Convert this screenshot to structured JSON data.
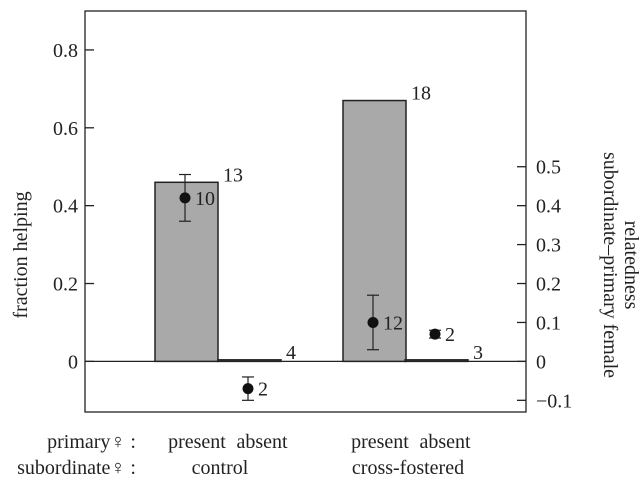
{
  "chart_data": {
    "type": "bar",
    "left_axis": {
      "label": "fraction helping",
      "ylim": [
        -0.13,
        0.9
      ],
      "ticks": [
        0,
        0.2,
        0.4,
        0.6,
        0.8
      ],
      "tick_labels": [
        "0",
        "0.2",
        "0.4",
        "0.6",
        "0.8"
      ]
    },
    "right_axis": {
      "label_line1": "subordinate–primary female",
      "label_line2": "relatedness",
      "ylim": [
        -0.13,
        0.9
      ],
      "ticks": [
        -0.1,
        0,
        0.1,
        0.2,
        0.3,
        0.4,
        0.5
      ],
      "tick_labels": [
        "−0.1",
        "0",
        "0.1",
        "0.2",
        "0.3",
        "0.4",
        "0.5"
      ]
    },
    "bars": [
      {
        "group": "control",
        "primary": "present",
        "value": 0.46,
        "n": "13"
      },
      {
        "group": "control",
        "primary": "absent",
        "value": 0.004,
        "n": "4"
      },
      {
        "group": "cross-fostered",
        "primary": "present",
        "value": 0.67,
        "n": "18"
      },
      {
        "group": "cross-fostered",
        "primary": "absent",
        "value": 0.004,
        "n": "3"
      }
    ],
    "points": [
      {
        "bar_index": 0,
        "value": 0.42,
        "err_low": 0.36,
        "err_high": 0.48,
        "n": "10"
      },
      {
        "bar_index": 1,
        "value": -0.07,
        "err_low": -0.1,
        "err_high": -0.04,
        "n": "2"
      },
      {
        "bar_index": 2,
        "value": 0.1,
        "err_low": 0.03,
        "err_high": 0.17,
        "n": "12"
      },
      {
        "bar_index": 3,
        "value": 0.07,
        "err_low": 0.06,
        "err_high": 0.08,
        "n": "2"
      }
    ],
    "row_labels": {
      "primary": "primary♀ :",
      "subordinate": "subordinate♀ :"
    },
    "bar_category_labels": [
      "present",
      "absent",
      "present",
      "absent"
    ],
    "group_labels": [
      "control",
      "cross-fostered"
    ],
    "colors": {
      "bar_fill": "#a9a9a9",
      "bar_stroke": "#222222",
      "point": "#111111"
    },
    "grid": false,
    "legend": "none"
  }
}
